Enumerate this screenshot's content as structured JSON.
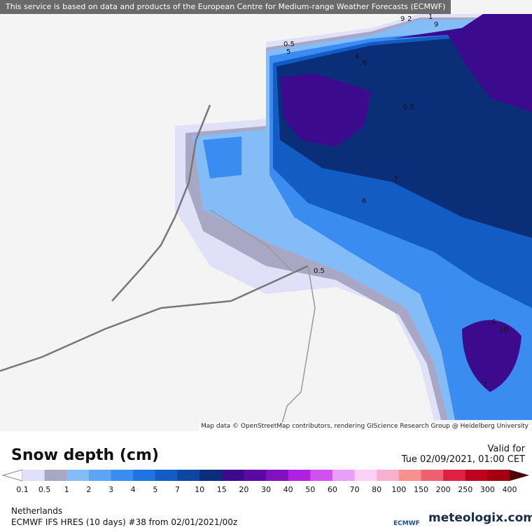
{
  "header": {
    "notice": "This service is based on data and products of the European Centre for Medium-range Weather Forecasts (ECMWF)"
  },
  "map": {
    "attribution": "Map data © OpenStreetMap contributors, rendering GIScience Research Group @ Heidelberg University",
    "contour_labels": [
      "0.5",
      "5",
      "4",
      "6",
      "9",
      "2",
      "1",
      "0.5",
      "9",
      "7",
      "6",
      "0.5",
      "6",
      "10",
      "7"
    ]
  },
  "legend": {
    "title": "Snow depth (cm)",
    "labels": [
      "0.1",
      "0.5",
      "1",
      "2",
      "3",
      "4",
      "5",
      "7",
      "10",
      "15",
      "20",
      "30",
      "40",
      "50",
      "60",
      "70",
      "80",
      "100",
      "150",
      "200",
      "250",
      "300",
      "400"
    ],
    "colors": [
      "#e0e0f8",
      "#a8a8c4",
      "#84bcf8",
      "#5ca4f6",
      "#3a8cf0",
      "#1e74e2",
      "#125cc4",
      "#0c46a0",
      "#0a2e78",
      "#3c0a8c",
      "#5a0aa0",
      "#8010c0",
      "#b020e0",
      "#d050f0",
      "#e8a0f8",
      "#f8d0f8",
      "#f8b0d0",
      "#f89090",
      "#f06070",
      "#e02040",
      "#c00020",
      "#a00010",
      "#800010",
      "#500008"
    ]
  },
  "valid": {
    "label": "Valid for",
    "time": "Tue 02/09/2021, 01:00 CET"
  },
  "footer": {
    "region": "Netherlands",
    "model": "ECMWF IFS HRES (10 days) #38 from  02/01/2021/00z",
    "ecmwf": "ECMWF",
    "brand": "meteologix.com"
  }
}
